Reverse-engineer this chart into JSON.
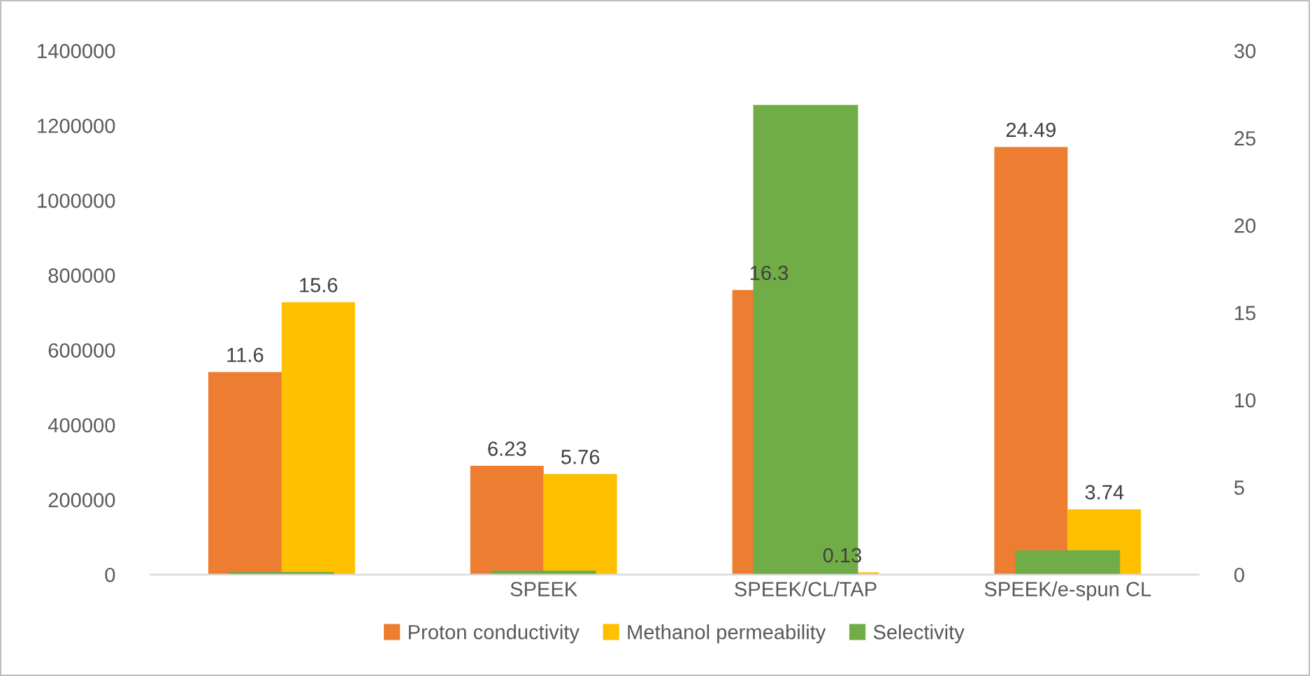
{
  "chart_data": {
    "type": "bar",
    "categories": [
      null,
      "SPEEK",
      "SPEEK/CL/TAP",
      "SPEEK/e-spun CL"
    ],
    "series": [
      {
        "name": "Proton conductivity",
        "color": "#ed7d31",
        "axis": "y2",
        "values": [
          11.6,
          6.23,
          16.3,
          24.49
        ],
        "value_labels": [
          "11.6",
          "6.23",
          "16.3",
          "24.49"
        ]
      },
      {
        "name": "Methanol permeability",
        "color": "#ffc000",
        "axis": "y2",
        "values": [
          15.6,
          5.76,
          0.13,
          3.74
        ],
        "value_labels": [
          "15.6",
          "5.76",
          "0.13",
          "3.74"
        ]
      },
      {
        "name": "Selectivity",
        "color": "#70ad47",
        "axis": "y",
        "values": [
          7000,
          11000,
          1255000,
          65000
        ]
      }
    ],
    "ylim": [
      0,
      1400000
    ],
    "yticks": [
      0,
      200000,
      400000,
      600000,
      800000,
      1000000,
      1200000,
      1400000
    ],
    "y2lim": [
      0,
      30
    ],
    "y2ticks": [
      0,
      5,
      10,
      15,
      20,
      25,
      30
    ],
    "grid": false,
    "legend": "bottom"
  }
}
